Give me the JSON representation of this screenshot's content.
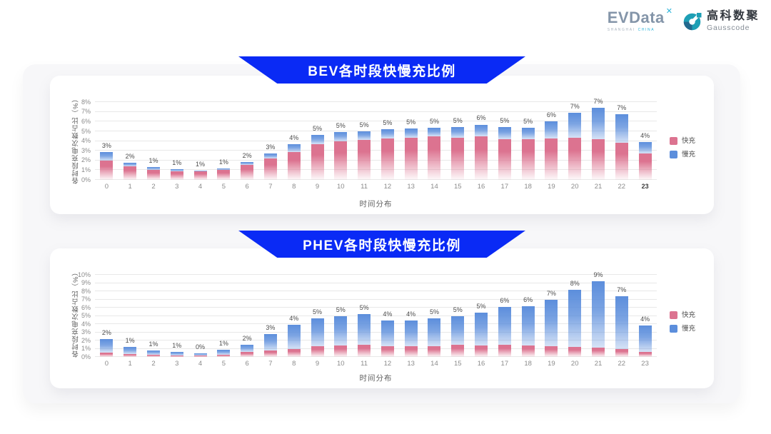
{
  "colors": {
    "banner_blue": "#0A2AF5",
    "accent_teal": "#2AB3D9",
    "panel_bg": "#F7F7F9",
    "grid_line": "#E8E8E8"
  },
  "logo": {
    "evdata": {
      "wordmark": "EVData",
      "sup_mark": "✕",
      "tagline_left": "SHANGHAI",
      "tagline_right": "CHINA"
    },
    "gausscode": {
      "name_cn": "高科数聚",
      "name_en": "Gausscode"
    }
  },
  "chart_data": [
    {
      "type": "bar",
      "stacked": true,
      "title": "BEV各时段快慢充比例",
      "xlabel": "时间分布",
      "ylabel": "各时段充电次数占比（%）",
      "ymax": 8,
      "ytick_labels": [
        "0%",
        "1%",
        "2%",
        "3%",
        "4%",
        "5%",
        "6%",
        "7%",
        "8%"
      ],
      "grid": true,
      "legend_position": "right",
      "categories": [
        "0",
        "1",
        "2",
        "3",
        "4",
        "5",
        "6",
        "7",
        "8",
        "9",
        "10",
        "11",
        "12",
        "13",
        "14",
        "15",
        "16",
        "17",
        "18",
        "19",
        "20",
        "21",
        "22",
        "23"
      ],
      "emphasized_tick": "23",
      "bar_total_labels": [
        "3%",
        "2%",
        "1%",
        "1%",
        "1%",
        "1%",
        "2%",
        "3%",
        "4%",
        "5%",
        "5%",
        "5%",
        "5%",
        "5%",
        "5%",
        "5%",
        "6%",
        "5%",
        "5%",
        "6%",
        "7%",
        "7%",
        "7%",
        "4%"
      ],
      "series": [
        {
          "name": "快充",
          "color": "#DC7390",
          "values": [
            1.95,
            1.4,
            1.05,
            0.9,
            0.85,
            1.0,
            1.55,
            2.2,
            2.85,
            3.7,
            4.0,
            4.1,
            4.3,
            4.35,
            4.45,
            4.35,
            4.5,
            4.2,
            4.2,
            4.3,
            4.35,
            4.2,
            3.8,
            2.7
          ]
        },
        {
          "name": "慢充",
          "color": "#5C8EDC",
          "values": [
            0.95,
            0.4,
            0.25,
            0.2,
            0.1,
            0.15,
            0.3,
            0.5,
            0.8,
            0.9,
            0.95,
            0.9,
            0.9,
            0.95,
            0.95,
            1.1,
            1.2,
            1.25,
            1.2,
            1.7,
            2.55,
            3.2,
            3.0,
            1.2
          ]
        }
      ]
    },
    {
      "type": "bar",
      "stacked": true,
      "title": "PHEV各时段快慢充比例",
      "xlabel": "时间分布",
      "ylabel": "各时段充电次数占比（%）",
      "ymax": 10,
      "ytick_labels": [
        "0%",
        "1%",
        "2%",
        "3%",
        "4%",
        "5%",
        "6%",
        "7%",
        "8%",
        "9%",
        "10%"
      ],
      "grid": true,
      "legend_position": "right",
      "categories": [
        "0",
        "1",
        "2",
        "3",
        "4",
        "5",
        "6",
        "7",
        "8",
        "9",
        "10",
        "11",
        "12",
        "13",
        "14",
        "15",
        "16",
        "17",
        "18",
        "19",
        "20",
        "21",
        "22",
        "23"
      ],
      "emphasized_tick": "",
      "bar_total_labels": [
        "2%",
        "1%",
        "1%",
        "1%",
        "0%",
        "1%",
        "2%",
        "3%",
        "4%",
        "5%",
        "5%",
        "5%",
        "4%",
        "4%",
        "5%",
        "5%",
        "5%",
        "6%",
        "6%",
        "7%",
        "8%",
        "9%",
        "7%",
        "4%"
      ],
      "series": [
        {
          "name": "快充",
          "color": "#DC7390",
          "values": [
            0.5,
            0.35,
            0.25,
            0.2,
            0.15,
            0.3,
            0.6,
            0.75,
            1.0,
            1.3,
            1.35,
            1.45,
            1.3,
            1.3,
            1.3,
            1.5,
            1.4,
            1.45,
            1.4,
            1.3,
            1.25,
            1.15,
            0.95,
            0.6
          ]
        },
        {
          "name": "慢充",
          "color": "#5C8EDC",
          "values": [
            1.7,
            0.85,
            0.55,
            0.4,
            0.3,
            0.55,
            0.9,
            2.0,
            2.9,
            3.4,
            3.65,
            3.75,
            3.15,
            3.15,
            3.4,
            3.5,
            4.0,
            4.65,
            4.8,
            5.7,
            6.95,
            8.05,
            6.45,
            3.2
          ]
        }
      ]
    }
  ]
}
